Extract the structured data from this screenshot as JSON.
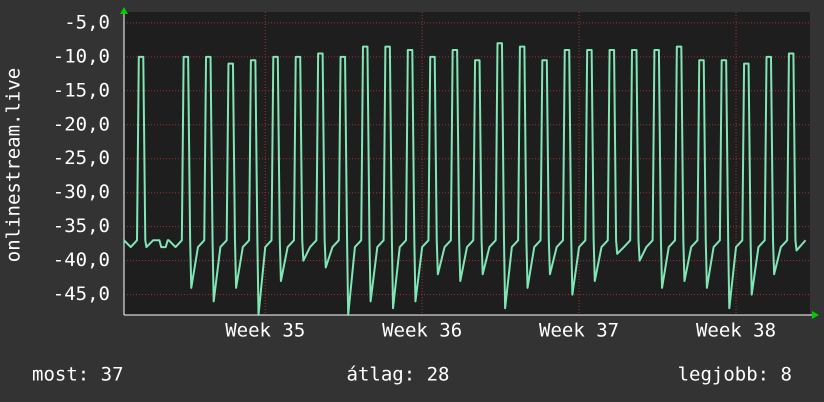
{
  "chart_data": {
    "type": "line",
    "y_label": "onlinestream.live",
    "xlim": [
      0,
      30.6
    ],
    "xticks": [
      {
        "value": 6.3,
        "label": "Week 35"
      },
      {
        "value": 13.3,
        "label": "Week 36"
      },
      {
        "value": 20.3,
        "label": "Week 37"
      },
      {
        "value": 27.3,
        "label": "Week 38"
      }
    ],
    "ylim": [
      -48,
      -3.4
    ],
    "yticks": [
      {
        "value": -5,
        "label": "-5,0"
      },
      {
        "value": -10,
        "label": "-10,0"
      },
      {
        "value": -15,
        "label": "-15,0"
      },
      {
        "value": -20,
        "label": "-20,0"
      },
      {
        "value": -25,
        "label": "-25,0"
      },
      {
        "value": -30,
        "label": "-30,0"
      },
      {
        "value": -35,
        "label": "-35,0"
      },
      {
        "value": -40,
        "label": "-40,0"
      },
      {
        "value": -45,
        "label": "-45,0"
      }
    ],
    "grid": true,
    "x": [
      0,
      0.3,
      0.58,
      0.66,
      0.86,
      0.95,
      1,
      1.3,
      1.58,
      1.66,
      1.86,
      1.95,
      2,
      2.3,
      2.58,
      2.66,
      2.86,
      2.95,
      3,
      3.3,
      3.58,
      3.66,
      3.86,
      3.95,
      4,
      4.3,
      4.58,
      4.66,
      4.86,
      4.95,
      5,
      5.3,
      5.58,
      5.66,
      5.86,
      5.95,
      6,
      6.3,
      6.58,
      6.66,
      6.86,
      6.95,
      7,
      7.3,
      7.58,
      7.66,
      7.86,
      7.95,
      8,
      8.3,
      8.58,
      8.66,
      8.86,
      8.95,
      9,
      9.3,
      9.58,
      9.66,
      9.86,
      9.95,
      10,
      10.3,
      10.58,
      10.66,
      10.86,
      10.95,
      11,
      11.3,
      11.58,
      11.66,
      11.86,
      11.95,
      12,
      12.3,
      12.58,
      12.66,
      12.86,
      12.95,
      13,
      13.3,
      13.58,
      13.66,
      13.86,
      13.95,
      14,
      14.3,
      14.58,
      14.66,
      14.86,
      14.95,
      15,
      15.3,
      15.58,
      15.66,
      15.86,
      15.95,
      16,
      16.3,
      16.58,
      16.66,
      16.86,
      16.95,
      17,
      17.3,
      17.58,
      17.66,
      17.86,
      17.95,
      18,
      18.3,
      18.58,
      18.66,
      18.86,
      18.95,
      19,
      19.3,
      19.58,
      19.66,
      19.86,
      19.95,
      20,
      20.3,
      20.58,
      20.66,
      20.86,
      20.95,
      21,
      21.3,
      21.58,
      21.66,
      21.86,
      21.95,
      22,
      22.3,
      22.58,
      22.66,
      22.86,
      22.95,
      23,
      23.3,
      23.58,
      23.66,
      23.86,
      23.95,
      24,
      24.3,
      24.58,
      24.66,
      24.86,
      24.95,
      25,
      25.3,
      25.58,
      25.66,
      25.86,
      25.95,
      26,
      26.3,
      26.58,
      26.66,
      26.86,
      26.95,
      27,
      27.3,
      27.58,
      27.66,
      27.86,
      27.95,
      28,
      28.3,
      28.58,
      28.66,
      28.86,
      28.95,
      29,
      29.3,
      29.58,
      29.66,
      29.86,
      29.95,
      30,
      30.4
    ],
    "series": [
      {
        "name": "onlinestream.live",
        "color": "#7fe6b4",
        "values": [
          -37,
          -38,
          -37,
          -10,
          -10,
          -37,
          -38,
          -37,
          -37,
          -38,
          -38,
          -37,
          -37,
          -38,
          -37,
          -10,
          -10,
          -37,
          -44,
          -38,
          -37,
          -10,
          -10,
          -37,
          -46,
          -38,
          -37,
          -11,
          -11,
          -37,
          -44,
          -38,
          -37,
          -10.5,
          -10.5,
          -37,
          -48,
          -38,
          -37,
          -10,
          -10,
          -37,
          -43,
          -38,
          -37,
          -10,
          -10,
          -37,
          -40,
          -38,
          -37,
          -9.5,
          -9.5,
          -37,
          -41,
          -38,
          -37,
          -10,
          -10,
          -37,
          -48,
          -38,
          -37,
          -8.5,
          -8.5,
          -37,
          -46,
          -38,
          -37,
          -8.5,
          -8.5,
          -37,
          -47,
          -38,
          -37,
          -9,
          -9,
          -37,
          -46,
          -38,
          -37,
          -10,
          -10,
          -37,
          -42,
          -38,
          -37,
          -9,
          -9,
          -37,
          -43,
          -38,
          -37,
          -10.5,
          -10.5,
          -37,
          -42,
          -38,
          -37,
          -8,
          -8,
          -37,
          -47,
          -38,
          -37,
          -8.5,
          -8.5,
          -37,
          -44,
          -38,
          -37,
          -10.5,
          -10.5,
          -37,
          -42,
          -38,
          -37,
          -9,
          -9,
          -37,
          -45,
          -38,
          -37,
          -9,
          -9,
          -37,
          -43,
          -38,
          -37,
          -9,
          -9,
          -37,
          -39,
          -38,
          -37,
          -9,
          -9,
          -37,
          -40,
          -38,
          -37,
          -9,
          -9,
          -37,
          -44,
          -38,
          -37,
          -8.5,
          -8.5,
          -37,
          -43,
          -38,
          -37,
          -10.5,
          -10.5,
          -37,
          -44,
          -38,
          -37,
          -10.5,
          -10.5,
          -37,
          -47,
          -38,
          -37,
          -11,
          -11,
          -37,
          -45,
          -38,
          -37,
          -10,
          -10,
          -37,
          -42,
          -38,
          -37,
          -9.5,
          -9.5,
          -37,
          -38.5,
          -37
        ]
      }
    ]
  },
  "footer": {
    "current": "most: 37",
    "average": "átlag: 28",
    "best": "legjobb: 8"
  }
}
